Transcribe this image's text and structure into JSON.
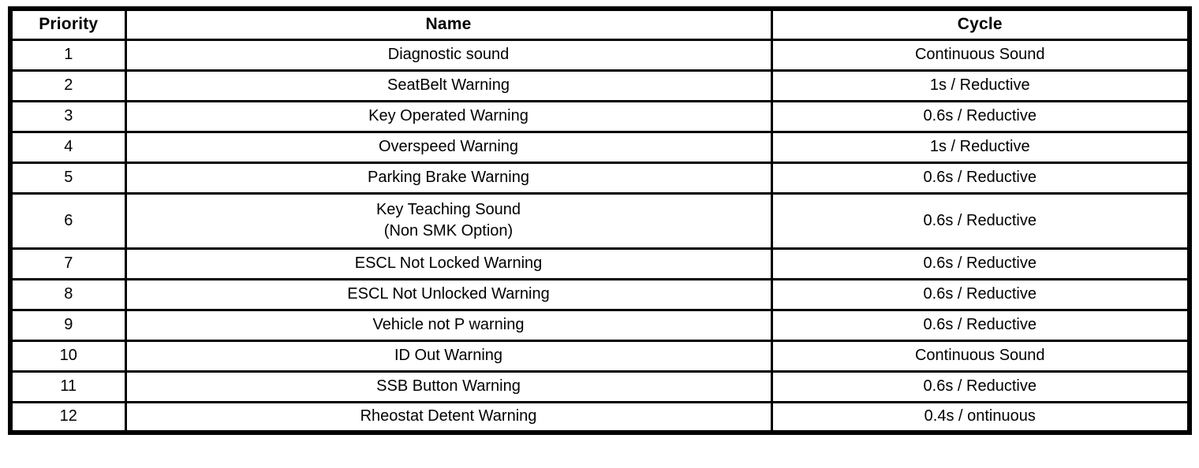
{
  "table": {
    "headers": {
      "priority": "Priority",
      "name": "Name",
      "cycle": "Cycle"
    },
    "rows": [
      {
        "priority": "1",
        "name": "Diagnostic sound",
        "cycle": "Continuous Sound"
      },
      {
        "priority": "2",
        "name": "SeatBelt Warning",
        "cycle": "1s / Reductive"
      },
      {
        "priority": "3",
        "name": "Key Operated Warning",
        "cycle": "0.6s / Reductive"
      },
      {
        "priority": "4",
        "name": "Overspeed Warning",
        "cycle": "1s / Reductive"
      },
      {
        "priority": "5",
        "name": "Parking Brake Warning",
        "cycle": "0.6s / Reductive"
      },
      {
        "priority": "6",
        "name": "Key Teaching Sound\n(Non SMK Option)",
        "cycle": "0.6s / Reductive"
      },
      {
        "priority": "7",
        "name": "ESCL Not Locked Warning",
        "cycle": "0.6s / Reductive"
      },
      {
        "priority": "8",
        "name": "ESCL Not Unlocked Warning",
        "cycle": "0.6s / Reductive"
      },
      {
        "priority": "9",
        "name": "Vehicle not P warning",
        "cycle": "0.6s / Reductive"
      },
      {
        "priority": "10",
        "name": "ID Out Warning",
        "cycle": "Continuous Sound"
      },
      {
        "priority": "11",
        "name": "SSB Button Warning",
        "cycle": "0.6s / Reductive"
      },
      {
        "priority": "12",
        "name": "Rheostat Detent Warning",
        "cycle": "0.4s / ontinuous"
      }
    ],
    "colors": {
      "border": "#000000",
      "text": "#000000",
      "background": "#ffffff"
    }
  }
}
